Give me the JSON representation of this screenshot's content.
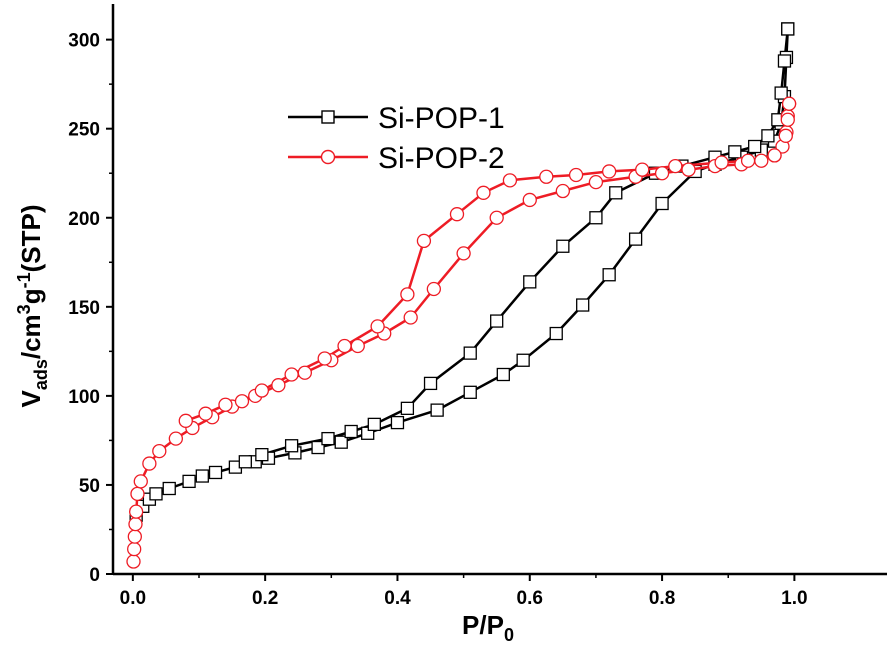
{
  "chart_data": {
    "type": "line",
    "xlabel": {
      "main": "P/P",
      "sub": "0"
    },
    "ylabel": {
      "main": "V",
      "sub": "ads",
      "mid": "/cm",
      "sup1": "3",
      "mid2": "g",
      "sup2": "-1",
      "tail": "(STP)"
    },
    "xlim": [
      -0.03,
      1.14
    ],
    "ylim": [
      0,
      320
    ],
    "xticks": [
      0.0,
      0.2,
      0.4,
      0.6,
      0.8,
      1.0
    ],
    "xtick_labels": [
      "0.0",
      "0.2",
      "0.4",
      "0.6",
      "0.8",
      "1.0"
    ],
    "yticks": [
      0,
      50,
      100,
      150,
      200,
      250,
      300
    ],
    "ytick_labels": [
      "0",
      "50",
      "100",
      "150",
      "200",
      "250",
      "300"
    ],
    "grid": false,
    "legend_position": "top-left",
    "series": [
      {
        "name": "Si-POP-1",
        "color": "#000000",
        "marker": "square",
        "adsorption": [
          [
            0.005,
            33
          ],
          [
            0.015,
            38
          ],
          [
            0.025,
            42
          ],
          [
            0.035,
            45
          ],
          [
            0.055,
            48
          ],
          [
            0.085,
            52
          ],
          [
            0.105,
            55
          ],
          [
            0.125,
            57
          ],
          [
            0.155,
            60
          ],
          [
            0.185,
            63
          ],
          [
            0.205,
            65
          ],
          [
            0.245,
            68
          ],
          [
            0.28,
            71
          ],
          [
            0.315,
            74
          ],
          [
            0.355,
            79
          ],
          [
            0.4,
            85
          ],
          [
            0.46,
            92
          ],
          [
            0.51,
            102
          ],
          [
            0.56,
            112
          ],
          [
            0.59,
            120
          ],
          [
            0.64,
            135
          ],
          [
            0.68,
            151
          ],
          [
            0.72,
            168
          ],
          [
            0.76,
            188
          ],
          [
            0.8,
            208
          ],
          [
            0.85,
            226
          ],
          [
            0.88,
            230
          ],
          [
            0.92,
            234
          ],
          [
            0.95,
            238
          ],
          [
            0.97,
            243
          ],
          [
            0.98,
            253
          ],
          [
            0.985,
            268
          ],
          [
            0.988,
            290
          ],
          [
            0.99,
            306
          ]
        ],
        "desorption": [
          [
            0.99,
            306
          ],
          [
            0.985,
            288
          ],
          [
            0.98,
            270
          ],
          [
            0.975,
            255
          ],
          [
            0.96,
            246
          ],
          [
            0.94,
            240
          ],
          [
            0.91,
            237
          ],
          [
            0.88,
            234
          ],
          [
            0.83,
            229
          ],
          [
            0.79,
            225
          ],
          [
            0.73,
            214
          ],
          [
            0.7,
            200
          ],
          [
            0.65,
            184
          ],
          [
            0.6,
            164
          ],
          [
            0.55,
            142
          ],
          [
            0.51,
            124
          ],
          [
            0.45,
            107
          ],
          [
            0.415,
            93
          ],
          [
            0.365,
            84
          ],
          [
            0.33,
            80
          ],
          [
            0.295,
            76
          ],
          [
            0.24,
            72
          ],
          [
            0.195,
            67
          ],
          [
            0.17,
            63
          ]
        ]
      },
      {
        "name": "Si-POP-2",
        "color": "#ee1c25",
        "marker": "circle",
        "adsorption": [
          [
            0.001,
            7
          ],
          [
            0.002,
            14
          ],
          [
            0.003,
            21
          ],
          [
            0.004,
            28
          ],
          [
            0.005,
            35
          ],
          [
            0.007,
            45
          ],
          [
            0.012,
            52
          ],
          [
            0.025,
            62
          ],
          [
            0.04,
            69
          ],
          [
            0.065,
            76
          ],
          [
            0.09,
            82
          ],
          [
            0.12,
            88
          ],
          [
            0.15,
            94
          ],
          [
            0.185,
            100
          ],
          [
            0.22,
            106
          ],
          [
            0.26,
            113
          ],
          [
            0.3,
            120
          ],
          [
            0.34,
            128
          ],
          [
            0.38,
            135
          ],
          [
            0.42,
            144
          ],
          [
            0.455,
            160
          ],
          [
            0.5,
            180
          ],
          [
            0.55,
            200
          ],
          [
            0.6,
            210
          ],
          [
            0.65,
            215
          ],
          [
            0.7,
            220
          ],
          [
            0.76,
            223
          ],
          [
            0.8,
            225
          ],
          [
            0.84,
            227
          ],
          [
            0.88,
            229
          ],
          [
            0.92,
            230
          ],
          [
            0.95,
            232
          ],
          [
            0.97,
            235
          ],
          [
            0.982,
            240
          ],
          [
            0.988,
            248
          ],
          [
            0.99,
            257
          ],
          [
            0.992,
            264
          ]
        ],
        "desorption": [
          [
            0.992,
            264
          ],
          [
            0.99,
            255
          ],
          [
            0.987,
            246
          ],
          [
            0.97,
            235
          ],
          [
            0.93,
            232
          ],
          [
            0.89,
            231
          ],
          [
            0.82,
            229
          ],
          [
            0.77,
            227
          ],
          [
            0.72,
            226
          ],
          [
            0.67,
            224
          ],
          [
            0.625,
            223
          ],
          [
            0.57,
            221
          ],
          [
            0.53,
            214
          ],
          [
            0.49,
            202
          ],
          [
            0.44,
            187
          ],
          [
            0.415,
            157
          ],
          [
            0.37,
            139
          ],
          [
            0.32,
            128
          ],
          [
            0.29,
            121
          ],
          [
            0.24,
            112
          ],
          [
            0.195,
            103
          ],
          [
            0.165,
            97
          ],
          [
            0.14,
            95
          ],
          [
            0.11,
            90
          ],
          [
            0.08,
            86
          ]
        ]
      }
    ]
  }
}
